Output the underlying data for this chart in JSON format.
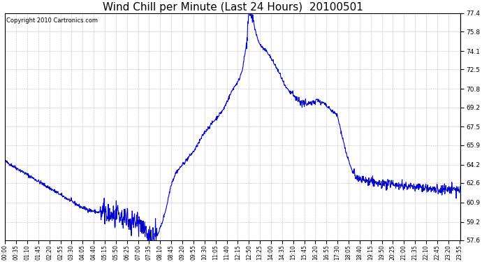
{
  "title": "Wind Chill per Minute (Last 24 Hours)  20100501",
  "copyright_text": "Copyright 2010 Cartronics.com",
  "line_color": "#0000cc",
  "background_color": "#ffffff",
  "grid_color": "#aaaaaa",
  "ylim": [
    57.6,
    77.4
  ],
  "yticks": [
    57.6,
    59.2,
    60.9,
    62.6,
    64.2,
    65.9,
    67.5,
    69.2,
    70.8,
    72.5,
    74.1,
    75.8,
    77.4
  ],
  "xtick_labels": [
    "00:00",
    "00:35",
    "01:10",
    "01:45",
    "02:20",
    "02:55",
    "03:30",
    "04:05",
    "04:40",
    "05:15",
    "05:50",
    "06:25",
    "07:00",
    "07:35",
    "08:10",
    "08:45",
    "09:20",
    "09:55",
    "10:30",
    "11:05",
    "11:40",
    "12:15",
    "12:50",
    "13:25",
    "14:00",
    "14:35",
    "15:10",
    "15:45",
    "16:20",
    "16:55",
    "17:30",
    "18:05",
    "18:40",
    "19:15",
    "19:50",
    "20:25",
    "21:00",
    "21:35",
    "22:10",
    "22:45",
    "23:20",
    "23:55"
  ],
  "title_fontsize": 11,
  "copyright_fontsize": 6,
  "tick_fontsize": 5.5,
  "ytick_fontsize": 6.5,
  "figwidth": 6.9,
  "figheight": 3.75,
  "dpi": 100
}
